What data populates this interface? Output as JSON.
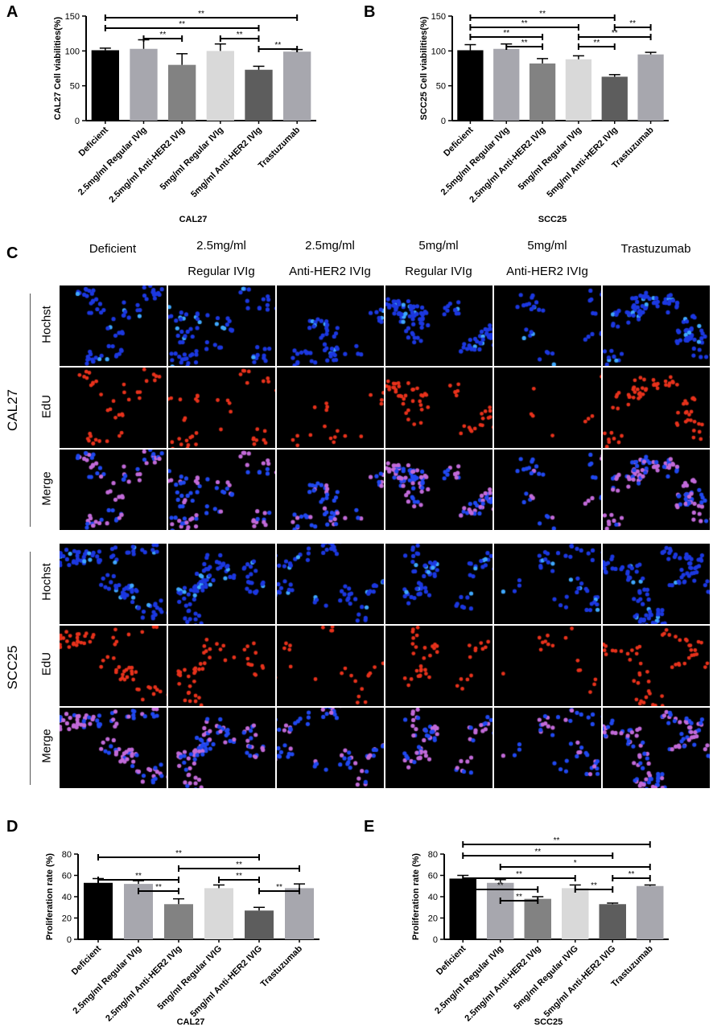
{
  "panels": {
    "A": "A",
    "B": "B",
    "C": "C",
    "D": "D",
    "E": "E"
  },
  "chart_data": [
    {
      "id": "A",
      "type": "bar",
      "title": "",
      "xlabel": "CAL27",
      "ylabel": "CAL27 Cell viabilities(%)",
      "ylim": [
        0,
        150
      ],
      "yticks": [
        0,
        50,
        100,
        150
      ],
      "categories": [
        "Deficient",
        "2.5mg/ml Regular IVIg",
        "2.5mg/ml Anti-HER2 IVIg",
        "5mg/ml Regular IVIg",
        "5mg/ml Anti-HER2 IVIg",
        "Trastuzumab"
      ],
      "values": [
        101,
        103,
        80,
        100,
        73,
        99
      ],
      "errors": [
        3,
        13,
        16,
        10,
        5,
        3
      ],
      "colors": [
        "#000000",
        "#a7a7ae",
        "#828282",
        "#d9d9d9",
        "#5d5d5d",
        "#a7a7ae"
      ],
      "significance": [
        {
          "from": 0,
          "to": 4,
          "label": "**"
        },
        {
          "from": 0,
          "to": 5,
          "label": "**"
        },
        {
          "from": 1,
          "to": 2,
          "label": "**"
        },
        {
          "from": 3,
          "to": 4,
          "label": "**"
        },
        {
          "from": 4,
          "to": 5,
          "label": "**"
        }
      ]
    },
    {
      "id": "B",
      "type": "bar",
      "title": "",
      "xlabel": "SCC25",
      "ylabel": "SCC25 Cell viabilities(%)",
      "ylim": [
        0,
        150
      ],
      "yticks": [
        0,
        50,
        100,
        150
      ],
      "categories": [
        "Deficient",
        "2.5mg/ml Regular IVIg",
        "2.5mg/ml Anti-HER2 IVIg",
        "5mg/ml Regular IVIg",
        "5mg/ml Anti-HER2 IVIg",
        "Trastuzumab"
      ],
      "values": [
        101,
        103,
        82,
        88,
        63,
        95
      ],
      "errors": [
        8,
        7,
        7,
        5,
        3,
        3
      ],
      "colors": [
        "#000000",
        "#a7a7ae",
        "#828282",
        "#d9d9d9",
        "#5d5d5d",
        "#a7a7ae"
      ],
      "significance": [
        {
          "from": 0,
          "to": 4,
          "label": "**"
        },
        {
          "from": 0,
          "to": 3,
          "label": "**"
        },
        {
          "from": 0,
          "to": 2,
          "label": "**"
        },
        {
          "from": 1,
          "to": 2,
          "label": "**"
        },
        {
          "from": 3,
          "to": 5,
          "label": "**"
        },
        {
          "from": 3,
          "to": 4,
          "label": "**"
        },
        {
          "from": 4,
          "to": 5,
          "label": "**"
        }
      ]
    },
    {
      "id": "D",
      "type": "bar",
      "title": "",
      "xlabel": "CAL27",
      "ylabel": "Proliferation rate (%)",
      "ylim": [
        0,
        80
      ],
      "yticks": [
        0,
        20,
        40,
        60,
        80
      ],
      "categories": [
        "Deficient",
        "2.5mg/ml Regular IVIg",
        "2.5mg/ml Anti-HER2 IVIg",
        "5mg/ml Regular IVIG",
        "5mg/ml Anti-HER2 IVIG",
        "Trastuzumab"
      ],
      "values": [
        53,
        52,
        33,
        48,
        27,
        48
      ],
      "errors": [
        4,
        3,
        5,
        3,
        3,
        4
      ],
      "colors": [
        "#000000",
        "#a7a7ae",
        "#828282",
        "#d9d9d9",
        "#5d5d5d",
        "#a7a7ae"
      ],
      "significance": [
        {
          "from": 0,
          "to": 4,
          "label": "**"
        },
        {
          "from": 0,
          "to": 2,
          "label": "**"
        },
        {
          "from": 2,
          "to": 5,
          "label": "**"
        },
        {
          "from": 1,
          "to": 2,
          "label": "**"
        },
        {
          "from": 3,
          "to": 4,
          "label": "**"
        },
        {
          "from": 4,
          "to": 5,
          "label": "**"
        }
      ]
    },
    {
      "id": "E",
      "type": "bar",
      "title": "",
      "xlabel": "SCC25",
      "ylabel": "Proliferation rate (%)",
      "ylim": [
        0,
        80
      ],
      "yticks": [
        0,
        20,
        40,
        60,
        80
      ],
      "categories": [
        "Deficient",
        "2.5mg/ml Regular IVIg",
        "2.5mg/ml Anti-HER2 IVIg",
        "5mg/ml Regular IVIG",
        "5mg/ml Anti-HER2 IVIG",
        "Trastuzumab"
      ],
      "values": [
        57,
        53,
        38,
        48,
        33,
        50
      ],
      "errors": [
        3,
        3,
        2,
        3,
        1,
        1
      ],
      "colors": [
        "#000000",
        "#a7a7ae",
        "#828282",
        "#d9d9d9",
        "#5d5d5d",
        "#a7a7ae"
      ],
      "significance": [
        {
          "from": 0,
          "to": 5,
          "label": "**"
        },
        {
          "from": 0,
          "to": 4,
          "label": "**"
        },
        {
          "from": 0,
          "to": 3,
          "label": "**"
        },
        {
          "from": 0,
          "to": 2,
          "label": "**"
        },
        {
          "from": 1,
          "to": 5,
          "label": "*"
        },
        {
          "from": 1,
          "to": 2,
          "label": "**"
        },
        {
          "from": 3,
          "to": 4,
          "label": "**"
        },
        {
          "from": 4,
          "to": 5,
          "label": "**"
        }
      ]
    }
  ],
  "microscopy": {
    "columns": [
      {
        "line1": "",
        "line2": "Deficient"
      },
      {
        "line1": "2.5mg/ml",
        "line2": "Regular IVIg"
      },
      {
        "line1": "2.5mg/ml",
        "line2": "Anti-HER2 IVIg"
      },
      {
        "line1": "5mg/ml",
        "line2": "Regular IVIg"
      },
      {
        "line1": "5mg/ml",
        "line2": "Anti-HER2 IVIg"
      },
      {
        "line1": "",
        "line2": "Trastuzumab"
      }
    ],
    "groups": [
      {
        "label": "CAL27",
        "rows": [
          "Hochst",
          "EdU",
          "Merge"
        ]
      },
      {
        "label": "SCC25",
        "rows": [
          "Hochst",
          "EdU",
          "Merge"
        ]
      }
    ],
    "cell_density": [
      [
        0.55,
        0.7,
        0.4,
        0.7,
        0.25,
        0.75
      ],
      [
        0.8,
        0.55,
        0.5,
        0.55,
        0.4,
        0.75
      ]
    ],
    "edu_fraction": [
      [
        0.55,
        0.5,
        0.3,
        0.48,
        0.25,
        0.5
      ],
      [
        0.6,
        0.55,
        0.4,
        0.48,
        0.3,
        0.52
      ]
    ]
  }
}
